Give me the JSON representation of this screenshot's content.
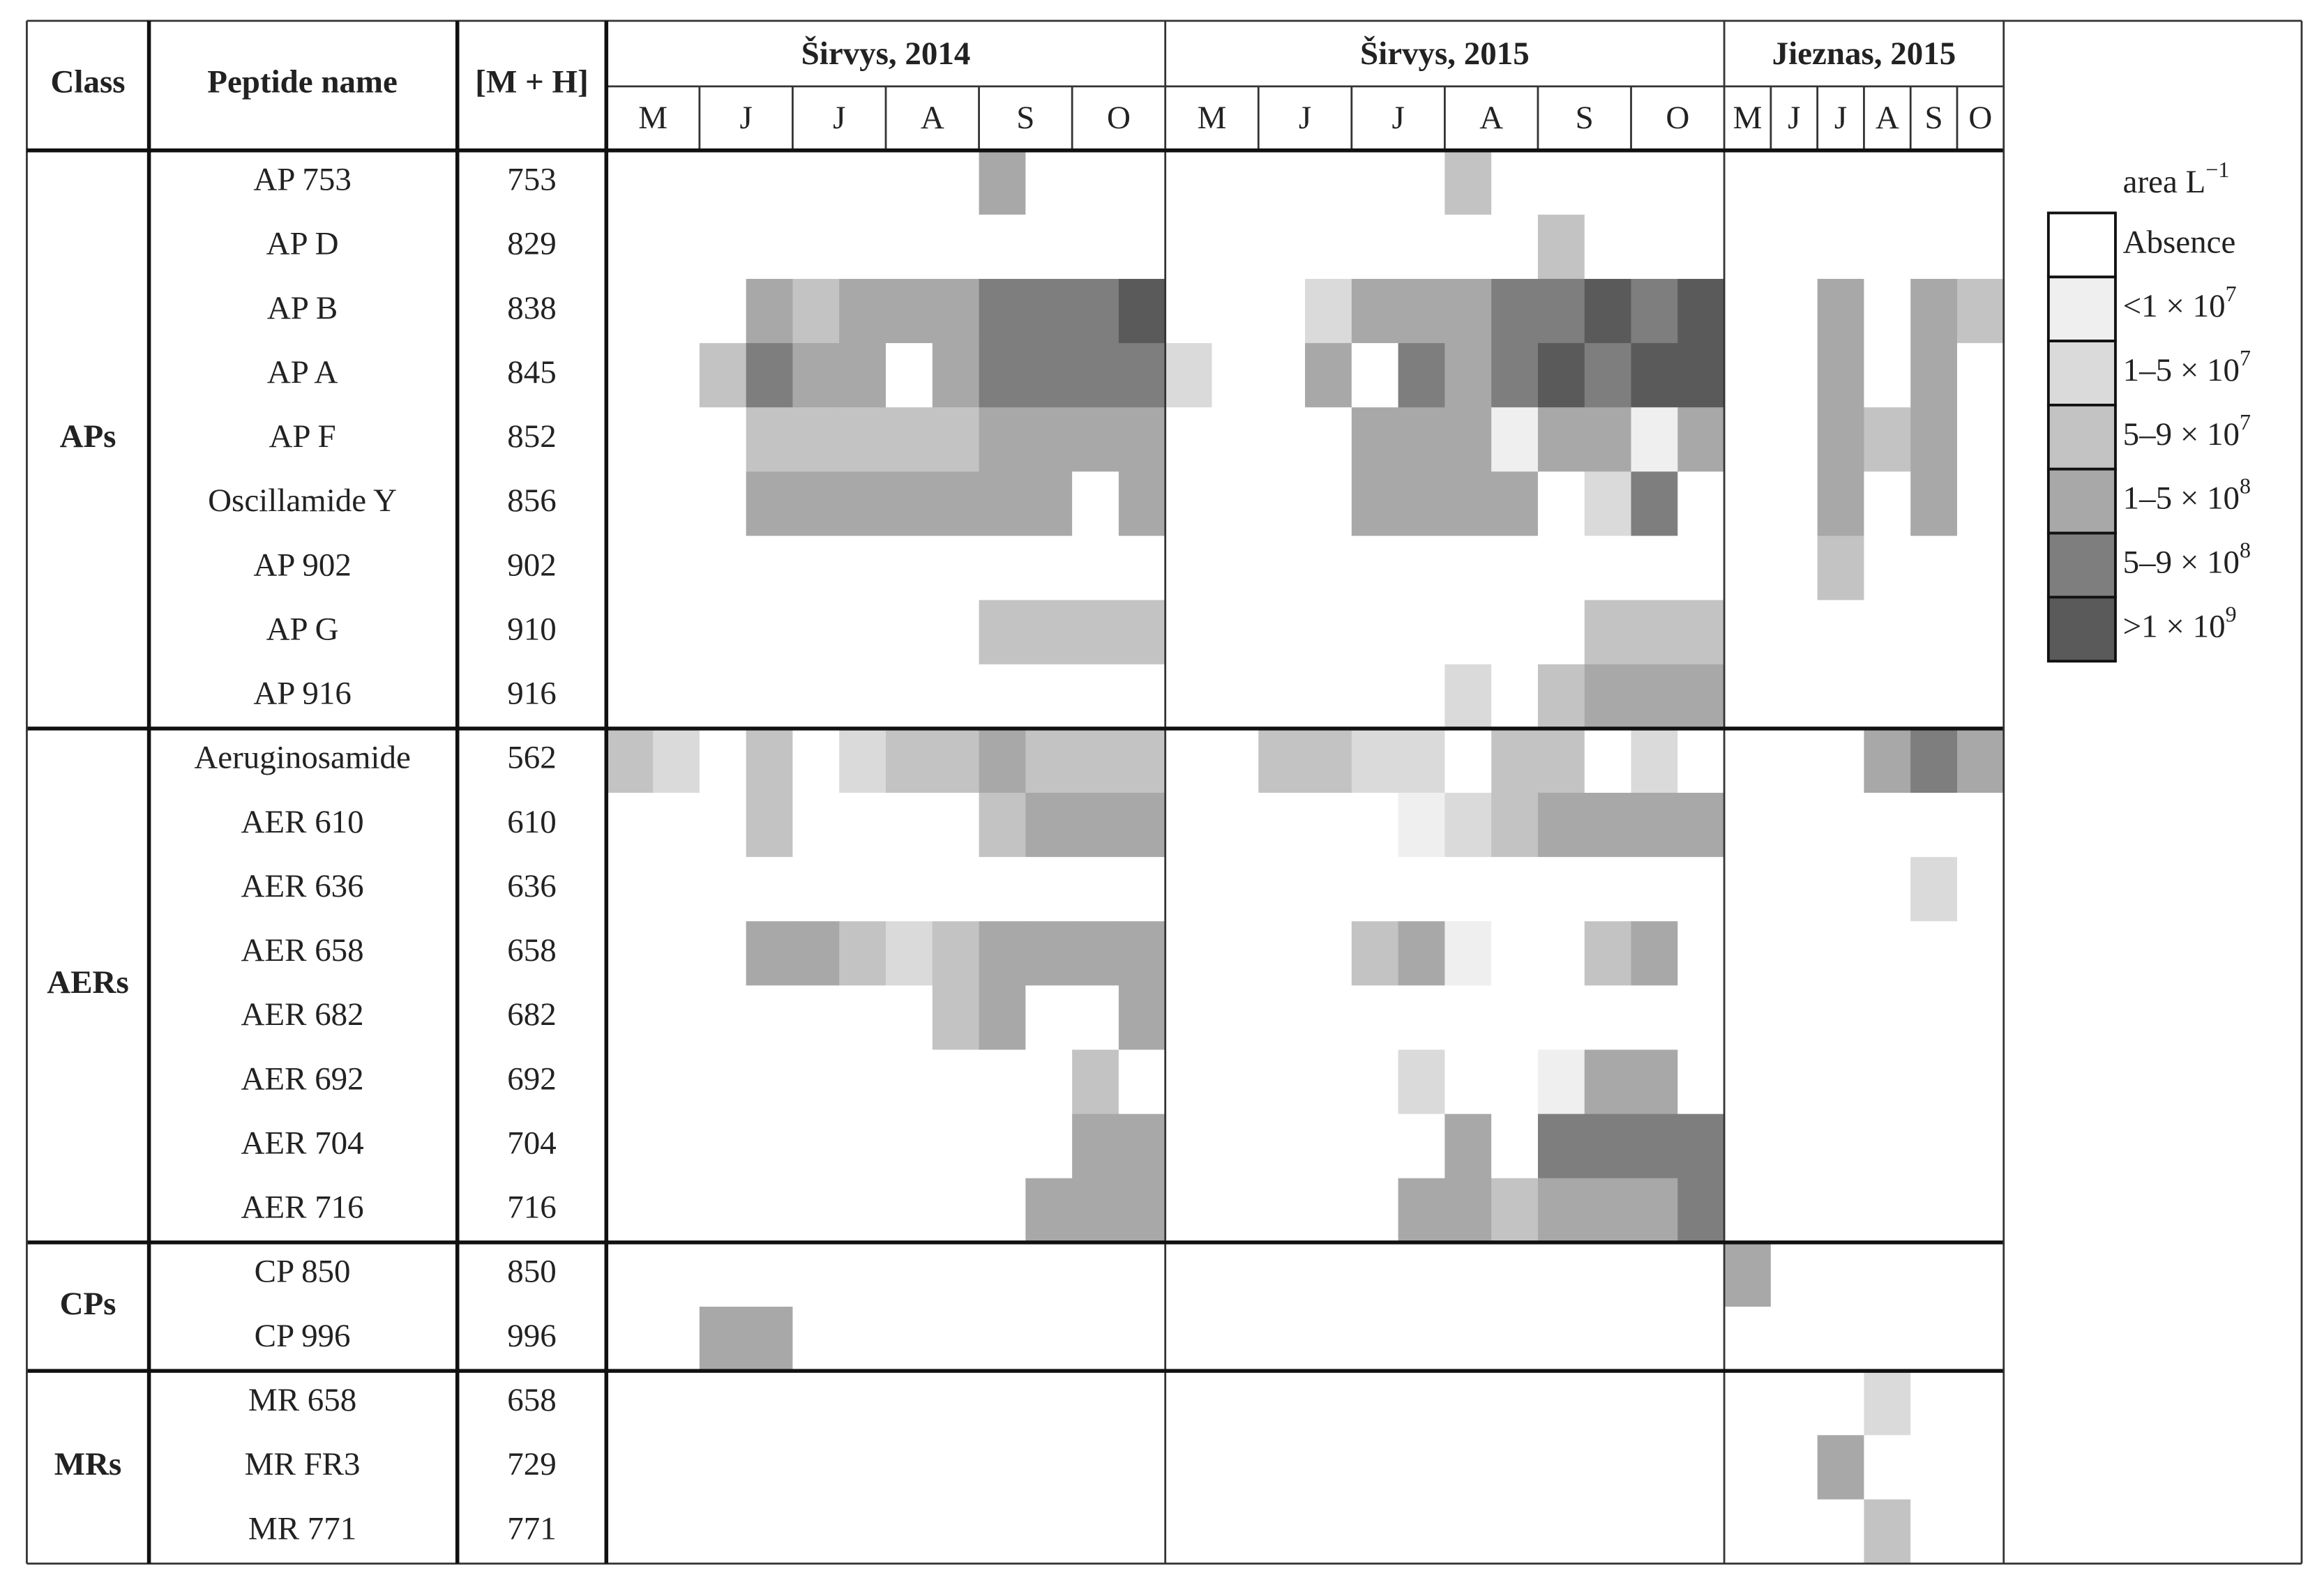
{
  "header": {
    "class": "Class",
    "peptide": "Peptide name",
    "mass": "[M + H]"
  },
  "sites": [
    {
      "name": "Širvys, 2014",
      "months": [
        "M",
        "J",
        "J",
        "A",
        "S",
        "O"
      ]
    },
    {
      "name": "Širvys, 2015",
      "months": [
        "M",
        "J",
        "J",
        "A",
        "S",
        "O"
      ]
    },
    {
      "name": "Jieznas, 2015",
      "months": [
        "M",
        "J",
        "J",
        "A",
        "S",
        "O"
      ]
    }
  ],
  "legend": {
    "title": {
      "text": "area L",
      "sup": "−1"
    },
    "items": [
      {
        "label": "Absence",
        "color": "#ffffff"
      },
      {
        "label": "<1 × 10",
        "sup": "7",
        "color": "#efefef"
      },
      {
        "label": "1–5 × 10",
        "sup": "7",
        "color": "#dadada"
      },
      {
        "label": "5–9 × 10",
        "sup": "7",
        "color": "#c3c3c3"
      },
      {
        "label": "1–5 × 10",
        "sup": "8",
        "color": "#a8a8a8"
      },
      {
        "label": "5–9 × 10",
        "sup": "8",
        "color": "#7e7e7e"
      },
      {
        "label": ">1 × 10",
        "sup": "9",
        "color": "#5a5a5a"
      }
    ]
  },
  "groups": [
    {
      "class": "APs",
      "rows": [
        {
          "name": "AP 753",
          "mass": 753,
          "levels": [
            [
              0,
              0,
              0,
              0,
              0,
              0,
              0,
              0,
              4,
              0,
              0,
              0
            ],
            [
              0,
              0,
              0,
              0,
              0,
              0,
              3,
              0,
              0,
              0,
              0,
              0
            ],
            [
              0,
              0,
              0,
              0,
              0,
              0
            ]
          ]
        },
        {
          "name": "AP D",
          "mass": 829,
          "levels": [
            [
              0,
              0,
              0,
              0,
              0,
              0,
              0,
              0,
              0,
              0,
              0,
              0
            ],
            [
              0,
              0,
              0,
              0,
              0,
              0,
              0,
              0,
              3,
              0,
              0,
              0
            ],
            [
              0,
              0,
              0,
              0,
              0,
              0
            ]
          ]
        },
        {
          "name": "AP B",
          "mass": 838,
          "levels": [
            [
              0,
              0,
              0,
              4,
              3,
              4,
              4,
              4,
              5,
              5,
              5,
              6
            ],
            [
              0,
              0,
              0,
              2,
              4,
              4,
              4,
              5,
              5,
              6,
              5,
              6
            ],
            [
              0,
              0,
              4,
              0,
              4,
              3
            ]
          ]
        },
        {
          "name": "AP A",
          "mass": 845,
          "levels": [
            [
              0,
              0,
              3,
              5,
              4,
              4,
              0,
              4,
              5,
              5,
              5,
              5
            ],
            [
              2,
              0,
              0,
              4,
              0,
              5,
              4,
              5,
              6,
              5,
              6,
              6
            ],
            [
              0,
              0,
              4,
              0,
              4,
              0
            ]
          ]
        },
        {
          "name": "AP F",
          "mass": 852,
          "levels": [
            [
              0,
              0,
              0,
              3,
              3,
              3,
              3,
              3,
              4,
              4,
              4,
              4
            ],
            [
              0,
              0,
              0,
              0,
              4,
              4,
              4,
              1,
              4,
              4,
              1,
              4
            ],
            [
              0,
              0,
              4,
              3,
              4,
              0
            ]
          ]
        },
        {
          "name": "Oscillamide Y",
          "mass": 856,
          "levels": [
            [
              0,
              0,
              0,
              4,
              4,
              4,
              4,
              4,
              4,
              4,
              0,
              4
            ],
            [
              0,
              0,
              0,
              0,
              4,
              4,
              4,
              4,
              0,
              2,
              5,
              0
            ],
            [
              0,
              0,
              4,
              0,
              4,
              0
            ]
          ]
        },
        {
          "name": "AP 902",
          "mass": 902,
          "levels": [
            [
              0,
              0,
              0,
              0,
              0,
              0,
              0,
              0,
              0,
              0,
              0,
              0
            ],
            [
              0,
              0,
              0,
              0,
              0,
              0,
              0,
              0,
              0,
              0,
              0,
              0
            ],
            [
              0,
              0,
              3,
              0,
              0,
              0
            ]
          ]
        },
        {
          "name": "AP G",
          "mass": 910,
          "levels": [
            [
              0,
              0,
              0,
              0,
              0,
              0,
              0,
              0,
              3,
              3,
              3,
              3
            ],
            [
              0,
              0,
              0,
              0,
              0,
              0,
              0,
              0,
              0,
              3,
              3,
              3
            ],
            [
              0,
              0,
              0,
              0,
              0,
              0
            ]
          ]
        },
        {
          "name": "AP 916",
          "mass": 916,
          "levels": [
            [
              0,
              0,
              0,
              0,
              0,
              0,
              0,
              0,
              0,
              0,
              0,
              0
            ],
            [
              0,
              0,
              0,
              0,
              0,
              0,
              2,
              0,
              3,
              4,
              4,
              4
            ],
            [
              0,
              0,
              0,
              0,
              0,
              0
            ]
          ]
        }
      ]
    },
    {
      "class": "AERs",
      "rows": [
        {
          "name": "Aeruginosamide",
          "mass": 562,
          "levels": [
            [
              3,
              2,
              0,
              3,
              0,
              2,
              3,
              3,
              4,
              3,
              3,
              3
            ],
            [
              0,
              0,
              3,
              3,
              2,
              2,
              0,
              3,
              3,
              0,
              2,
              0
            ],
            [
              0,
              0,
              0,
              4,
              5,
              4
            ]
          ]
        },
        {
          "name": "AER 610",
          "mass": 610,
          "levels": [
            [
              0,
              0,
              0,
              3,
              0,
              0,
              0,
              0,
              3,
              4,
              4,
              4
            ],
            [
              0,
              0,
              0,
              0,
              0,
              1,
              2,
              3,
              4,
              4,
              4,
              4
            ],
            [
              0,
              0,
              0,
              0,
              0,
              0
            ]
          ]
        },
        {
          "name": "AER 636",
          "mass": 636,
          "levels": [
            [
              0,
              0,
              0,
              0,
              0,
              0,
              0,
              0,
              0,
              0,
              0,
              0
            ],
            [
              0,
              0,
              0,
              0,
              0,
              0,
              0,
              0,
              0,
              0,
              0,
              0
            ],
            [
              0,
              0,
              0,
              0,
              2,
              0
            ]
          ]
        },
        {
          "name": "AER 658",
          "mass": 658,
          "levels": [
            [
              0,
              0,
              0,
              4,
              4,
              3,
              2,
              3,
              4,
              4,
              4,
              4
            ],
            [
              0,
              0,
              0,
              0,
              3,
              4,
              1,
              0,
              0,
              3,
              4,
              0
            ],
            [
              0,
              0,
              0,
              0,
              0,
              0
            ]
          ]
        },
        {
          "name": "AER 682",
          "mass": 682,
          "levels": [
            [
              0,
              0,
              0,
              0,
              0,
              0,
              0,
              3,
              4,
              0,
              0,
              4
            ],
            [
              0,
              0,
              0,
              0,
              0,
              0,
              0,
              0,
              0,
              0,
              0,
              0
            ],
            [
              0,
              0,
              0,
              0,
              0,
              0
            ]
          ]
        },
        {
          "name": "AER 692",
          "mass": 692,
          "levels": [
            [
              0,
              0,
              0,
              0,
              0,
              0,
              0,
              0,
              0,
              0,
              3,
              0
            ],
            [
              0,
              0,
              0,
              0,
              0,
              2,
              0,
              0,
              1,
              4,
              4,
              0
            ],
            [
              0,
              0,
              0,
              0,
              0,
              0
            ]
          ]
        },
        {
          "name": "AER 704",
          "mass": 704,
          "levels": [
            [
              0,
              0,
              0,
              0,
              0,
              0,
              0,
              0,
              0,
              0,
              4,
              4
            ],
            [
              0,
              0,
              0,
              0,
              0,
              0,
              4,
              0,
              5,
              5,
              5,
              5
            ],
            [
              0,
              0,
              0,
              0,
              0,
              0
            ]
          ]
        },
        {
          "name": "AER 716",
          "mass": 716,
          "levels": [
            [
              0,
              0,
              0,
              0,
              0,
              0,
              0,
              0,
              0,
              4,
              4,
              4
            ],
            [
              0,
              0,
              0,
              0,
              0,
              4,
              4,
              3,
              4,
              4,
              4,
              5
            ],
            [
              0,
              0,
              0,
              0,
              0,
              0
            ]
          ]
        }
      ]
    },
    {
      "class": "CPs",
      "rows": [
        {
          "name": "CP 850",
          "mass": 850,
          "levels": [
            [
              0,
              0,
              0,
              0,
              0,
              0,
              0,
              0,
              0,
              0,
              0,
              0
            ],
            [
              0,
              0,
              0,
              0,
              0,
              0,
              0,
              0,
              0,
              0,
              0,
              0
            ],
            [
              4,
              0,
              0,
              0,
              0,
              0
            ]
          ]
        },
        {
          "name": "CP 996",
          "mass": 996,
          "levels": [
            [
              0,
              0,
              4,
              4,
              0,
              0,
              0,
              0,
              0,
              0,
              0,
              0
            ],
            [
              0,
              0,
              0,
              0,
              0,
              0,
              0,
              0,
              0,
              0,
              0,
              0
            ],
            [
              0,
              0,
              0,
              0,
              0,
              0
            ]
          ]
        }
      ]
    },
    {
      "class": "MRs",
      "rows": [
        {
          "name": "MR 658",
          "mass": 658,
          "levels": [
            [
              0,
              0,
              0,
              0,
              0,
              0,
              0,
              0,
              0,
              0,
              0,
              0
            ],
            [
              0,
              0,
              0,
              0,
              0,
              0,
              0,
              0,
              0,
              0,
              0,
              0
            ],
            [
              0,
              0,
              0,
              2,
              0,
              0
            ]
          ]
        },
        {
          "name": "MR FR3",
          "mass": 729,
          "levels": [
            [
              0,
              0,
              0,
              0,
              0,
              0,
              0,
              0,
              0,
              0,
              0,
              0
            ],
            [
              0,
              0,
              0,
              0,
              0,
              0,
              0,
              0,
              0,
              0,
              0,
              0
            ],
            [
              0,
              0,
              4,
              0,
              0,
              0
            ]
          ]
        },
        {
          "name": "MR 771",
          "mass": 771,
          "levels": [
            [
              0,
              0,
              0,
              0,
              0,
              0,
              0,
              0,
              0,
              0,
              0,
              0
            ],
            [
              0,
              0,
              0,
              0,
              0,
              0,
              0,
              0,
              0,
              0,
              0,
              0
            ],
            [
              0,
              0,
              0,
              3,
              0,
              0
            ]
          ]
        }
      ]
    }
  ]
}
